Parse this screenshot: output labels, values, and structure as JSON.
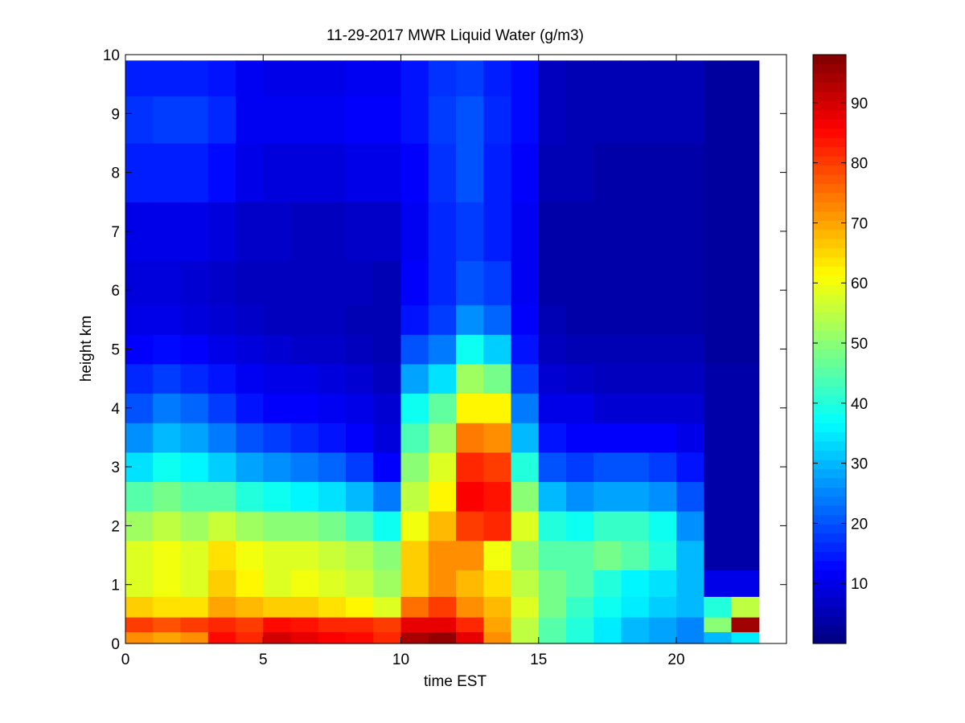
{
  "chart_data": {
    "type": "heatmap",
    "title": "11-29-2017 MWR Liquid Water (g/m3)",
    "xlabel": "time EST",
    "ylabel": "height km",
    "xlim": [
      0,
      24
    ],
    "ylim": [
      0,
      10
    ],
    "xticks": [
      "0",
      "5",
      "10",
      "15",
      "20"
    ],
    "yticks": [
      "0",
      "1",
      "2",
      "3",
      "4",
      "5",
      "6",
      "7",
      "8",
      "9",
      "10"
    ],
    "colorbar": {
      "colormap": "jet",
      "range": [
        0,
        98
      ],
      "ticks": [
        "10",
        "20",
        "30",
        "40",
        "50",
        "60",
        "70",
        "80",
        "90"
      ]
    },
    "x": [
      0.5,
      1.5,
      2.5,
      3.5,
      4.5,
      5.5,
      6.5,
      7.5,
      8.5,
      9.5,
      10.5,
      11.5,
      12.5,
      13.5,
      14.5,
      15.5,
      16.5,
      17.5,
      18.5,
      19.5,
      20.5,
      21.5,
      22.5
    ],
    "y": [
      0.1,
      0.3,
      0.6,
      1.0,
      1.5,
      2.0,
      2.5,
      3.0,
      3.5,
      4.0,
      4.5,
      5.0,
      5.5,
      6.0,
      7.0,
      8.0,
      9.0,
      9.6
    ],
    "values": [
      [
        72,
        70,
        72,
        85,
        82,
        90,
        88,
        86,
        85,
        82,
        94,
        96,
        88,
        72,
        55,
        45,
        40,
        35,
        30,
        28,
        25,
        30,
        35
      ],
      [
        80,
        78,
        80,
        82,
        80,
        85,
        84,
        82,
        82,
        80,
        88,
        88,
        82,
        70,
        55,
        45,
        40,
        35,
        30,
        28,
        25,
        50,
        95
      ],
      [
        66,
        64,
        64,
        70,
        68,
        66,
        66,
        64,
        62,
        58,
        75,
        80,
        72,
        68,
        58,
        48,
        42,
        38,
        35,
        32,
        30,
        40,
        55
      ],
      [
        58,
        60,
        58,
        66,
        62,
        58,
        60,
        58,
        56,
        52,
        66,
        72,
        68,
        64,
        55,
        48,
        45,
        40,
        36,
        34,
        30,
        10,
        10
      ],
      [
        58,
        60,
        58,
        64,
        60,
        58,
        58,
        56,
        54,
        50,
        66,
        72,
        72,
        60,
        52,
        45,
        45,
        48,
        45,
        40,
        30,
        4,
        4
      ],
      [
        52,
        55,
        52,
        56,
        52,
        50,
        50,
        48,
        44,
        38,
        60,
        68,
        80,
        82,
        58,
        40,
        38,
        42,
        42,
        38,
        26,
        4,
        4
      ],
      [
        45,
        48,
        45,
        45,
        40,
        38,
        36,
        34,
        30,
        24,
        55,
        62,
        86,
        84,
        50,
        30,
        26,
        28,
        28,
        26,
        20,
        4,
        4
      ],
      [
        34,
        38,
        36,
        32,
        28,
        26,
        24,
        22,
        18,
        12,
        50,
        58,
        82,
        80,
        40,
        20,
        18,
        20,
        20,
        18,
        14,
        4,
        4
      ],
      [
        26,
        30,
        28,
        24,
        20,
        18,
        16,
        14,
        12,
        9,
        44,
        52,
        74,
        72,
        30,
        14,
        12,
        12,
        12,
        12,
        10,
        4,
        4
      ],
      [
        20,
        24,
        22,
        18,
        14,
        12,
        12,
        11,
        10,
        8,
        38,
        46,
        62,
        62,
        24,
        10,
        10,
        8,
        8,
        8,
        8,
        4,
        4
      ],
      [
        16,
        18,
        16,
        14,
        11,
        10,
        10,
        9,
        8,
        6,
        28,
        34,
        52,
        48,
        18,
        8,
        7,
        6,
        6,
        6,
        6,
        4,
        4
      ],
      [
        12,
        13,
        12,
        10,
        9,
        8,
        7,
        7,
        6,
        5,
        20,
        24,
        38,
        32,
        14,
        6,
        5,
        5,
        5,
        5,
        5,
        3,
        3
      ],
      [
        10,
        10,
        9,
        8,
        7,
        6,
        6,
        6,
        5,
        5,
        14,
        18,
        26,
        22,
        12,
        5,
        4,
        4,
        4,
        4,
        4,
        3,
        3
      ],
      [
        9,
        9,
        8,
        7,
        6,
        6,
        6,
        6,
        6,
        5,
        12,
        16,
        20,
        18,
        11,
        4,
        4,
        4,
        4,
        4,
        4,
        3,
        3
      ],
      [
        10,
        10,
        10,
        9,
        7,
        7,
        6,
        6,
        7,
        7,
        11,
        16,
        18,
        15,
        11,
        4,
        4,
        4,
        4,
        4,
        4,
        3,
        3
      ],
      [
        15,
        15,
        15,
        13,
        10,
        9,
        9,
        9,
        10,
        10,
        12,
        17,
        20,
        15,
        12,
        5,
        5,
        4,
        4,
        4,
        4,
        3,
        3
      ],
      [
        17,
        18,
        18,
        16,
        11,
        11,
        11,
        11,
        12,
        12,
        14,
        18,
        20,
        16,
        13,
        6,
        5,
        5,
        5,
        5,
        5,
        3,
        3
      ],
      [
        15,
        15,
        15,
        14,
        11,
        10,
        10,
        10,
        11,
        11,
        14,
        17,
        18,
        15,
        13,
        6,
        5,
        5,
        5,
        5,
        5,
        3,
        3
      ]
    ]
  }
}
